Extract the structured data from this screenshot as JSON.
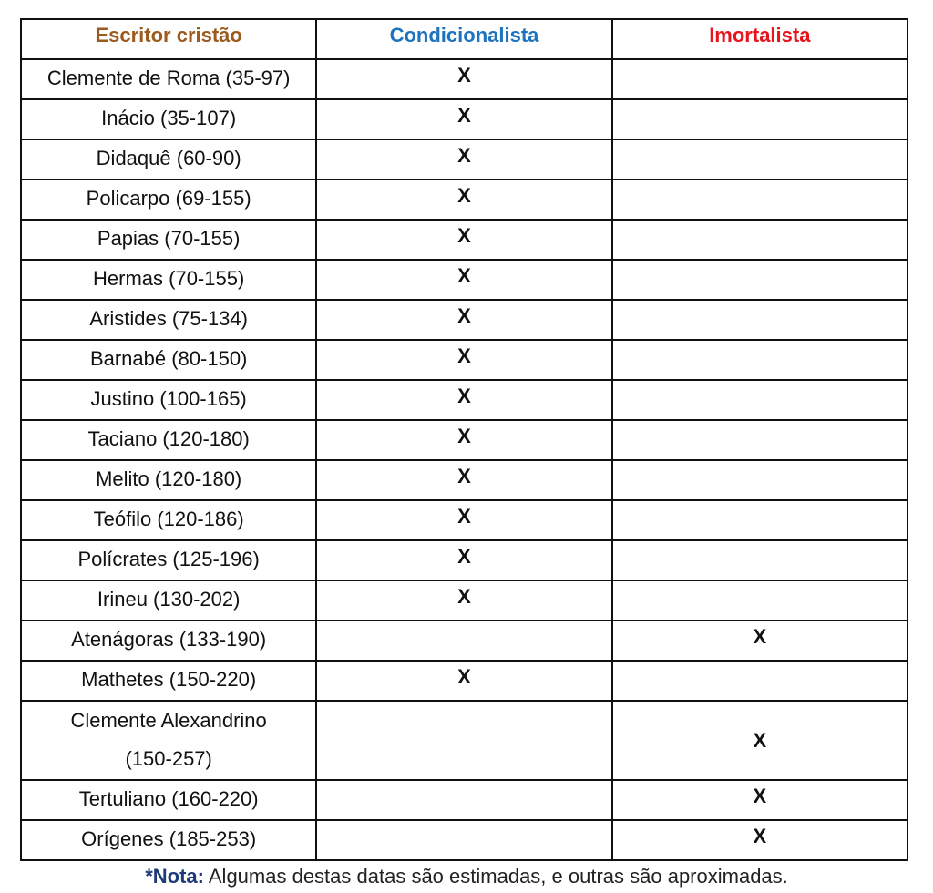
{
  "table": {
    "headers": [
      {
        "label": "Escritor cristão",
        "color": "#9c5a1c"
      },
      {
        "label": "Condicionalista",
        "color": "#1e73be"
      },
      {
        "label": "Imortalista",
        "color": "#e8141c"
      }
    ],
    "mark": "X",
    "rows": [
      {
        "writer": "Clemente de Roma (35-97)",
        "view": "condicionalista"
      },
      {
        "writer": "Inácio (35-107)",
        "view": "condicionalista"
      },
      {
        "writer": "Didaquê (60-90)",
        "view": "condicionalista"
      },
      {
        "writer": "Policarpo (69-155)",
        "view": "condicionalista"
      },
      {
        "writer": "Papias (70-155)",
        "view": "condicionalista"
      },
      {
        "writer": "Hermas (70-155)",
        "view": "condicionalista"
      },
      {
        "writer": "Aristides (75-134)",
        "view": "condicionalista"
      },
      {
        "writer": "Barnabé (80-150)",
        "view": "condicionalista"
      },
      {
        "writer": "Justino (100-165)",
        "view": "condicionalista"
      },
      {
        "writer": "Taciano (120-180)",
        "view": "condicionalista"
      },
      {
        "writer": "Melito (120-180)",
        "view": "condicionalista"
      },
      {
        "writer": "Teófilo (120-186)",
        "view": "condicionalista"
      },
      {
        "writer": "Polícrates (125-196)",
        "view": "condicionalista"
      },
      {
        "writer": "Irineu (130-202)",
        "view": "condicionalista"
      },
      {
        "writer": "Atenágoras (133-190)",
        "view": "imortalista"
      },
      {
        "writer": "Mathetes (150-220)",
        "view": "condicionalista"
      },
      {
        "writer": "Clemente Alexandrino (150-257)",
        "writer_lines": [
          "Clemente Alexandrino",
          "(150-257)"
        ],
        "view": "imortalista"
      },
      {
        "writer": "Tertuliano (160-220)",
        "view": "imortalista"
      },
      {
        "writer": "Orígenes (185-253)",
        "view": "imortalista"
      }
    ]
  },
  "note": {
    "label": "*Nota:",
    "text": " Algumas destas datas são estimadas, e outras são aproximadas."
  }
}
